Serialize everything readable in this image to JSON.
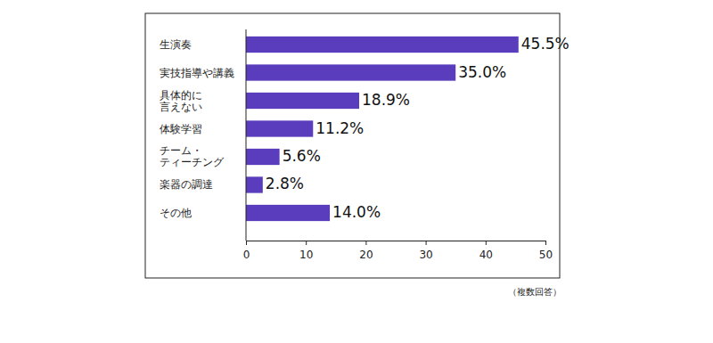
{
  "chart_data": {
    "type": "bar",
    "orientation": "horizontal",
    "categories": [
      "生演奏",
      "実技指導や講義",
      "具体的に\n言えない",
      "体験学習",
      "チーム・\nティーチング",
      "楽器の調達",
      "その他"
    ],
    "values": [
      45.5,
      35.0,
      18.9,
      11.2,
      5.6,
      2.8,
      14.0
    ],
    "value_labels": [
      "45.5%",
      "35.0%",
      "18.9%",
      "11.2%",
      "5.6%",
      "2.8%",
      "14.0%"
    ],
    "data_labels": true,
    "color": "#5a3dbd",
    "xlim": [
      0,
      50
    ],
    "xticks": [
      0,
      10,
      20,
      30,
      40,
      50
    ],
    "grid": false,
    "annotation": "（複数回答）"
  }
}
